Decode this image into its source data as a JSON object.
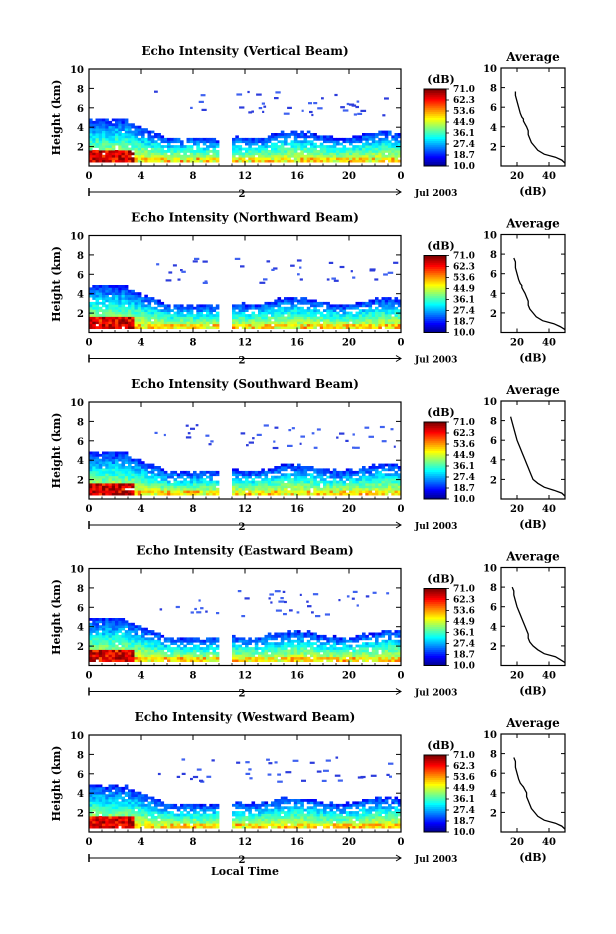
{
  "figure": {
    "xaxis_label": "Local Time",
    "date_label": "Jul 2003",
    "day_marker": "2"
  },
  "colorbar": {
    "unit": "(dB)",
    "levels": [
      "71.0",
      "62.3",
      "53.6",
      "44.9",
      "36.1",
      "27.4",
      "18.7",
      "10.0"
    ],
    "min": 10.0,
    "max": 71.0
  },
  "chart_data": [
    {
      "type": "heatmap",
      "title": "Echo Intensity (Vertical Beam)",
      "ylabel": "Height (km)",
      "xlim": [
        0,
        24
      ],
      "ylim": [
        0,
        10
      ],
      "xticks": [
        "0",
        "4",
        "8",
        "12",
        "16",
        "20",
        "0"
      ],
      "yticks": [
        "2",
        "4",
        "6",
        "8",
        "10"
      ],
      "data_gap": [
        10,
        11
      ],
      "avg_profile": {
        "title": "Average",
        "xlabel": "(dB)",
        "xlim": [
          10,
          50
        ],
        "xticks": [
          "20",
          "40"
        ],
        "ylim": [
          0,
          10
        ],
        "yticks": [
          "2",
          "4",
          "6",
          "8",
          "10"
        ],
        "intensity_db": [
          50,
          48,
          44,
          37,
          33,
          31,
          29,
          28,
          27,
          27,
          26,
          25,
          24,
          24,
          23,
          22,
          21,
          20,
          19,
          19
        ],
        "height_km": [
          0.3,
          0.6,
          0.9,
          1.2,
          1.6,
          2.0,
          2.4,
          2.8,
          3.2,
          3.6,
          4.0,
          4.3,
          4.6,
          4.8,
          5.0,
          5.4,
          6.0,
          6.6,
          7.2,
          7.6
        ]
      }
    },
    {
      "type": "heatmap",
      "title": "Echo Intensity (Northward Beam)",
      "ylabel": "Height (km)",
      "xlim": [
        0,
        24
      ],
      "ylim": [
        0,
        10
      ],
      "xticks": [
        "0",
        "4",
        "8",
        "12",
        "16",
        "20",
        "0"
      ],
      "yticks": [
        "2",
        "4",
        "6",
        "8",
        "10"
      ],
      "data_gap": [
        10,
        11
      ],
      "avg_profile": {
        "title": "Average",
        "xlabel": "(dB)",
        "xlim": [
          10,
          50
        ],
        "xticks": [
          "20",
          "40"
        ],
        "ylim": [
          0,
          10
        ],
        "yticks": [
          "2",
          "4",
          "6",
          "8",
          "10"
        ],
        "intensity_db": [
          50,
          47,
          43,
          36,
          32,
          30,
          28,
          27,
          27,
          26,
          25,
          24,
          23,
          23,
          22,
          21,
          20,
          19,
          19,
          18
        ],
        "height_km": [
          0.3,
          0.6,
          0.9,
          1.2,
          1.6,
          2.0,
          2.4,
          2.8,
          3.2,
          3.6,
          4.0,
          4.3,
          4.6,
          4.8,
          5.0,
          5.4,
          6.0,
          6.6,
          7.2,
          7.6
        ]
      }
    },
    {
      "type": "heatmap",
      "title": "Echo Intensity (Southward Beam)",
      "ylabel": "Height (km)",
      "xlim": [
        0,
        24
      ],
      "ylim": [
        0,
        10
      ],
      "xticks": [
        "0",
        "4",
        "8",
        "12",
        "16",
        "20",
        "0"
      ],
      "yticks": [
        "2",
        "4",
        "6",
        "8",
        "10"
      ],
      "data_gap": [
        10,
        11
      ],
      "avg_profile": {
        "title": "Average",
        "xlabel": "(dB)",
        "xlim": [
          10,
          50
        ],
        "xticks": [
          "20",
          "40"
        ],
        "ylim": [
          0,
          10
        ],
        "yticks": [
          "2",
          "4",
          "6",
          "8",
          "10"
        ],
        "intensity_db": [
          50,
          48,
          43,
          37,
          33,
          30,
          29,
          28,
          27,
          26,
          25,
          24,
          23,
          22,
          21,
          20,
          19,
          18,
          17,
          16
        ],
        "height_km": [
          0.3,
          0.6,
          0.9,
          1.2,
          1.6,
          2.0,
          2.4,
          2.8,
          3.2,
          3.6,
          4.0,
          4.4,
          4.8,
          5.2,
          5.6,
          6.0,
          6.6,
          7.2,
          7.8,
          8.4
        ]
      }
    },
    {
      "type": "heatmap",
      "title": "Echo Intensity (Eastward Beam)",
      "ylabel": "Height (km)",
      "xlim": [
        0,
        24
      ],
      "ylim": [
        0,
        10
      ],
      "xticks": [
        "0",
        "4",
        "8",
        "12",
        "16",
        "20",
        "0"
      ],
      "yticks": [
        "2",
        "4",
        "6",
        "8",
        "10"
      ],
      "data_gap": [
        10,
        11
      ],
      "avg_profile": {
        "title": "Average",
        "xlabel": "(dB)",
        "xlim": [
          10,
          50
        ],
        "xticks": [
          "20",
          "40"
        ],
        "ylim": [
          0,
          10
        ],
        "yticks": [
          "2",
          "4",
          "6",
          "8",
          "10"
        ],
        "intensity_db": [
          50,
          47,
          44,
          37,
          33,
          30,
          28,
          27,
          27,
          26,
          25,
          24,
          23,
          22,
          21,
          20,
          19,
          18,
          18,
          17
        ],
        "height_km": [
          0.3,
          0.6,
          0.9,
          1.2,
          1.6,
          2.0,
          2.4,
          2.8,
          3.2,
          3.6,
          4.0,
          4.4,
          4.8,
          5.2,
          5.6,
          6.0,
          6.6,
          7.2,
          7.6,
          8.0
        ]
      }
    },
    {
      "type": "heatmap",
      "title": "Echo Intensity (Westward Beam)",
      "ylabel": "Height (km)",
      "xlim": [
        0,
        24
      ],
      "ylim": [
        0,
        10
      ],
      "xticks": [
        "0",
        "4",
        "8",
        "12",
        "16",
        "20",
        "0"
      ],
      "yticks": [
        "2",
        "4",
        "6",
        "8",
        "10"
      ],
      "data_gap": [
        10,
        11
      ],
      "avg_profile": {
        "title": "Average",
        "xlabel": "(dB)",
        "xlim": [
          10,
          50
        ],
        "xticks": [
          "20",
          "40"
        ],
        "ylim": [
          0,
          10
        ],
        "yticks": [
          "2",
          "4",
          "6",
          "8",
          "10"
        ],
        "intensity_db": [
          50,
          48,
          44,
          37,
          33,
          31,
          29,
          28,
          27,
          26,
          26,
          25,
          24,
          23,
          22,
          21,
          20,
          19,
          19,
          18
        ],
        "height_km": [
          0.3,
          0.6,
          0.9,
          1.2,
          1.6,
          2.0,
          2.4,
          2.8,
          3.2,
          3.6,
          4.0,
          4.3,
          4.6,
          4.8,
          5.0,
          5.4,
          6.0,
          6.6,
          7.2,
          7.6
        ]
      }
    }
  ]
}
